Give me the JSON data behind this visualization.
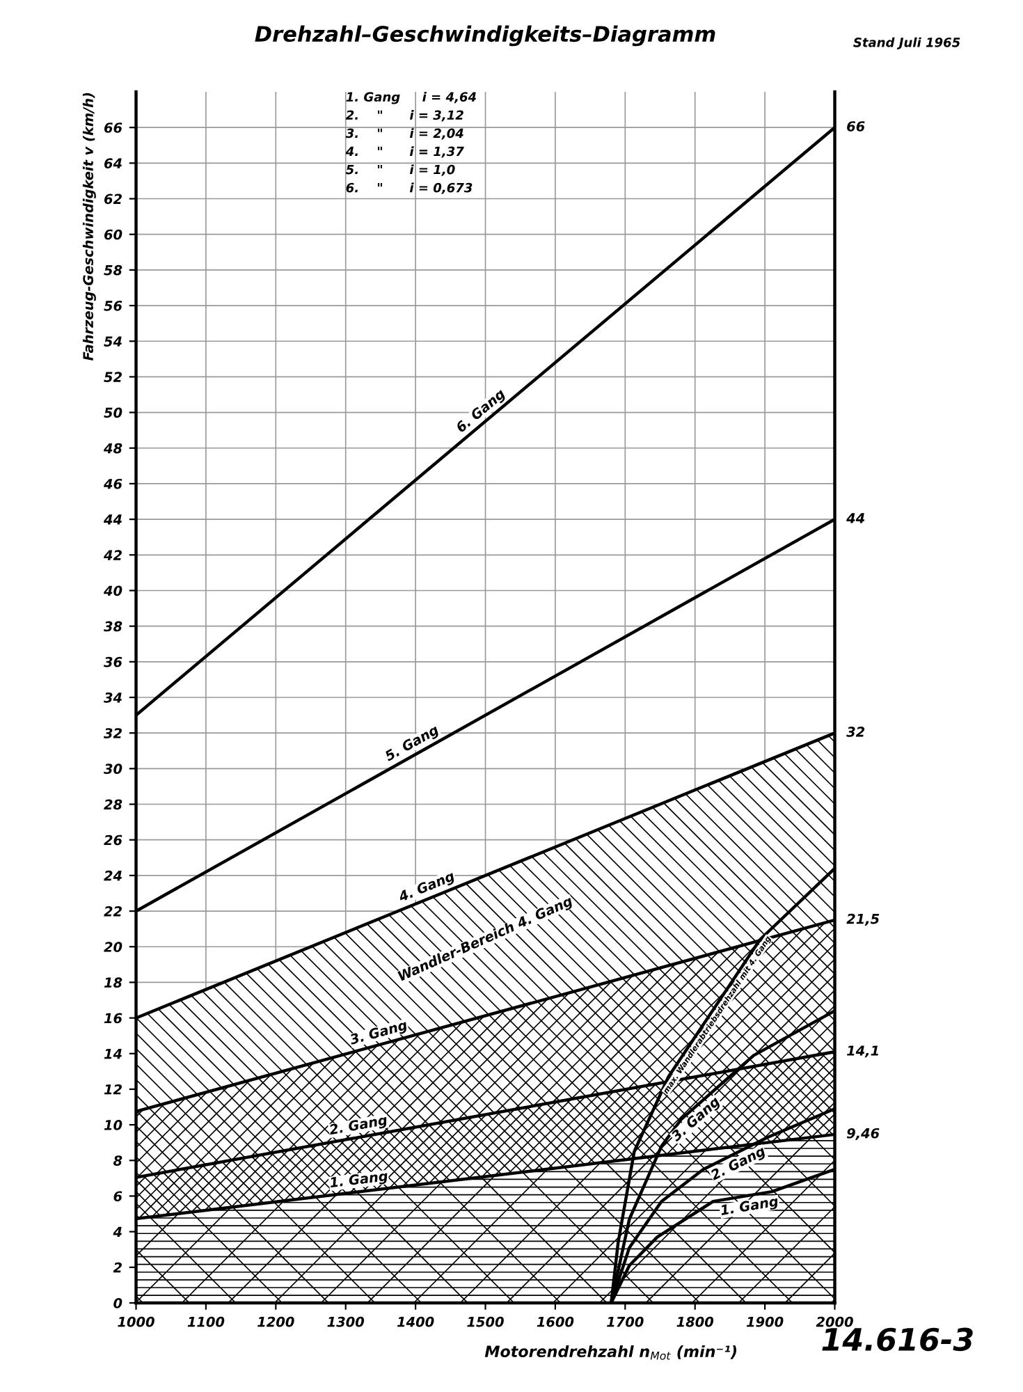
{
  "chart_data": {
    "type": "line",
    "title": "Drehzahl–Geschwindigkeits–Diagramm",
    "xlabel": "Motorendrehzahl n$_{Mot}$ (min⁻¹)",
    "ylabel": "Fahrzeug-Geschwindigkeit v (km/h)",
    "xlim": [
      1000,
      2000
    ],
    "ylim": [
      0,
      68
    ],
    "xticks": [
      1000,
      1100,
      1200,
      1300,
      1400,
      1500,
      1600,
      1700,
      1800,
      1900,
      2000
    ],
    "yticks": [
      0,
      2,
      4,
      6,
      8,
      10,
      12,
      14,
      16,
      18,
      20,
      22,
      24,
      26,
      28,
      30,
      32,
      34,
      36,
      38,
      40,
      42,
      44,
      46,
      48,
      50,
      52,
      54,
      56,
      58,
      60,
      62,
      64,
      66
    ],
    "grid": true,
    "legend": false,
    "marker": "none",
    "line_style": "solid",
    "series": [
      {
        "name": "6. Gang",
        "color": "#000000",
        "x": [
          1000,
          2000
        ],
        "values": [
          33,
          66
        ],
        "value_labels": [
          null,
          "66"
        ]
      },
      {
        "name": "5. Gang",
        "color": "#000000",
        "x": [
          1000,
          2000
        ],
        "values": [
          22,
          44
        ],
        "value_labels": [
          null,
          "44"
        ]
      },
      {
        "name": "4. Gang",
        "type": "area",
        "color": "#000000",
        "x": [
          1000,
          2000
        ],
        "values": [
          16,
          32
        ],
        "value_labels": [
          null,
          "32"
        ]
      },
      {
        "name": "3. Gang",
        "type": "area",
        "color": "#000000",
        "x": [
          1000,
          2000
        ],
        "values": [
          10.75,
          21.5
        ],
        "value_labels": [
          null,
          "21,5"
        ]
      },
      {
        "name": "2. Gang",
        "type": "area",
        "color": "#000000",
        "x": [
          1000,
          2000
        ],
        "values": [
          7.05,
          14.1
        ],
        "value_labels": [
          null,
          "14,1"
        ]
      },
      {
        "name": "1. Gang",
        "type": "area",
        "color": "#000000",
        "x": [
          1000,
          2000
        ],
        "values": [
          4.73,
          9.46
        ],
        "value_labels": [
          null,
          "9,46"
        ]
      },
      {
        "name": "max. Wandlerabtriebsdrehzahl mit 4. Gang",
        "color": "#000000",
        "x": [
          1680,
          1690,
          1713,
          1762,
          1893,
          2000
        ],
        "values": [
          0,
          3.4,
          8.5,
          12.7,
          20.4,
          24.4
        ]
      },
      {
        "name": "3. Gang",
        "color": "#000000",
        "x": [
          1680,
          1706,
          1752,
          1780,
          1884,
          2000
        ],
        "values": [
          0,
          4.7,
          8.8,
          10.3,
          13.9,
          16.4
        ]
      },
      {
        "name": "2. Gang",
        "color": "#000000",
        "x": [
          1680,
          1706,
          1752,
          1812,
          1904,
          2000
        ],
        "values": [
          0,
          3.1,
          5.7,
          7.5,
          9.3,
          10.9
        ]
      },
      {
        "name": "1. Gang",
        "color": "#000000",
        "x": [
          1680,
          1706,
          1746,
          1826,
          1910,
          2000
        ],
        "values": [
          0,
          2.1,
          3.7,
          5.7,
          6.25,
          7.5
        ]
      }
    ],
    "annotations": [
      "1. Gang     i = 4,64",
      "2.    \"      i = 3,12",
      "3.    \"      i = 2,04",
      "4.    \"      i = 1,37",
      "5.    \"      i = 1,0",
      "6.    \"      i = 0,673",
      "Stand Juli 1965",
      "14.616-3",
      "Wandler-Bereich 4. Gang"
    ]
  }
}
